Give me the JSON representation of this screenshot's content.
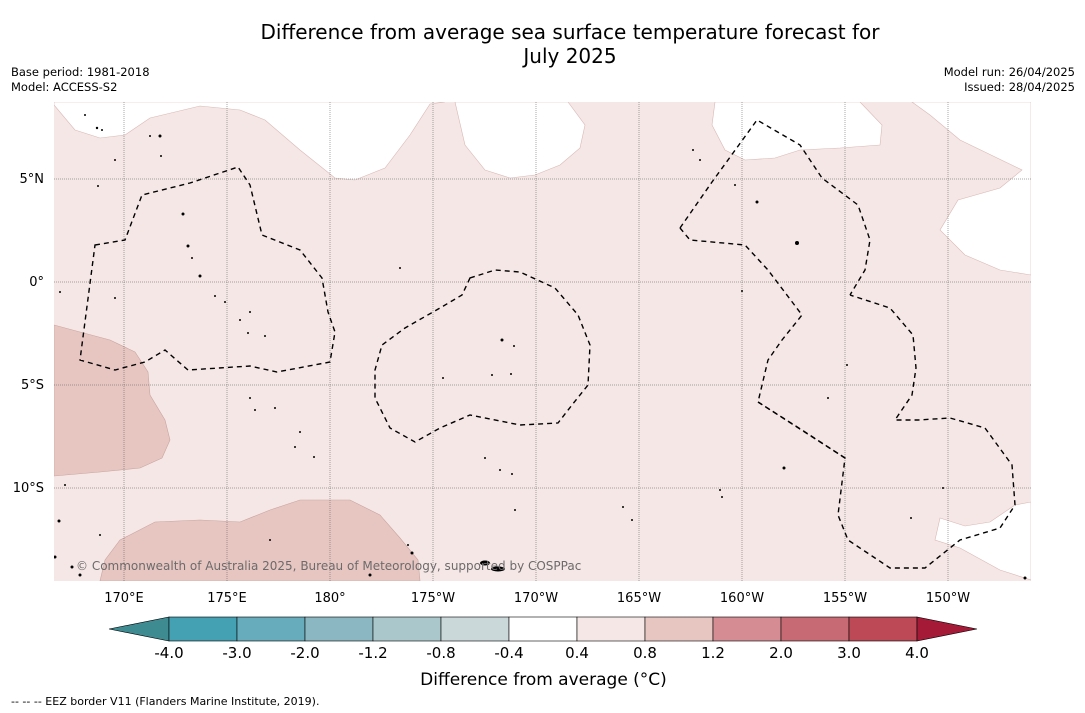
{
  "title_line1": "Difference from average sea surface temperature forecast for",
  "title_line2": "July 2025",
  "meta_left": {
    "base_period": "Base period: 1981-2018",
    "model": "Model: ACCESS-S2"
  },
  "meta_right": {
    "model_run": "Model run: 26/04/2025",
    "issued": "Issued: 28/04/2025"
  },
  "lat_labels": [
    "5°N",
    "0°",
    "5°S",
    "10°S"
  ],
  "lon_labels": [
    "170°E",
    "175°E",
    "180°",
    "175°W",
    "170°W",
    "165°W",
    "160°W",
    "155°W",
    "150°W"
  ],
  "copyright": "© Commonwealth of Australia 2025, Bureau of Meteorology, supported by COSPPac",
  "colorbar": {
    "ticks": [
      "-4.0",
      "-3.0",
      "-2.0",
      "-1.2",
      "-0.8",
      "-0.4",
      "0.4",
      "0.8",
      "1.2",
      "2.0",
      "3.0",
      "4.0"
    ],
    "colors": [
      "#44a1b3",
      "#66acbd",
      "#8bb7c3",
      "#aac8cc",
      "#cbd8d9",
      "#ffffff",
      "#f5e7e5",
      "#e7c6c2",
      "#d58d93",
      "#c76a73",
      "#bd4957"
    ],
    "extend_low": "#3e8b92",
    "extend_high": "#a41a37",
    "label": "Difference from average (°C)"
  },
  "colors": {
    "anomaly_0_4_to_0_8": "#f5e7e5",
    "anomaly_0_8_to_1_2": "#e7c6c2",
    "no_anomaly": "#ffffff",
    "eez_line": "#000000"
  },
  "footer_legend": "--  --  -- EEZ border V11 (Flanders Marine Institute, 2019)."
}
